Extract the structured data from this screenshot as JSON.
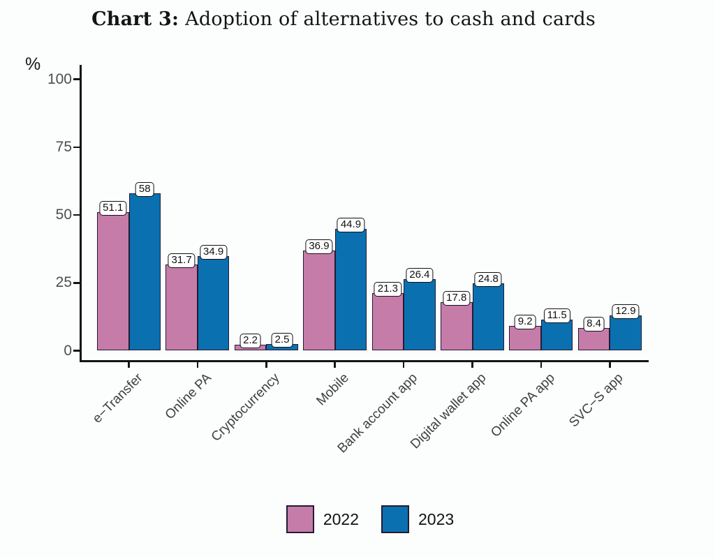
{
  "title": {
    "prefix": "Chart 3:",
    "text": "Adoption of alternatives to cash and cards"
  },
  "y_axis": {
    "unit": "%"
  },
  "legend": {
    "items": [
      {
        "label": "2022",
        "color": "#C67CA9"
      },
      {
        "label": "2023",
        "color": "#0B70AF"
      }
    ]
  },
  "chart_data": {
    "type": "bar",
    "title": "Chart 3: Adoption of alternatives to cash and cards",
    "categories": [
      "e−Transfer",
      "Online PA",
      "Cryptocurrency",
      "Mobile",
      "Bank account app",
      "Digital wallet app",
      "Online PA app",
      "SVC−S app"
    ],
    "series": [
      {
        "name": "2022",
        "color": "#C67CA9",
        "values": [
          51.1,
          31.7,
          2.2,
          36.9,
          21.3,
          17.8,
          9.2,
          8.4
        ],
        "labels": [
          "51.1",
          "31.7",
          "2.2",
          "36.9",
          "21.3",
          "17.8",
          "9.2",
          "8.4"
        ]
      },
      {
        "name": "2023",
        "color": "#0B70AF",
        "values": [
          58,
          34.9,
          2.5,
          44.9,
          26.4,
          24.8,
          11.5,
          12.9
        ],
        "labels": [
          "58",
          "34.9",
          "2.5",
          "44.9",
          "26.4",
          "24.8",
          "11.5",
          "12.9"
        ]
      }
    ],
    "ylabel": "%",
    "ylim": [
      0,
      100
    ],
    "yticks": [
      0,
      25,
      50,
      75,
      100
    ],
    "grid": false,
    "legend_position": "bottom",
    "bar_outline_color": "#241a33",
    "axis_color": "#141414",
    "ytick_label_color": "#4d4d4d",
    "xtick_label_color": "#404040",
    "value_label_box": {
      "background": "#ffffff",
      "border_color": "#101010"
    }
  }
}
